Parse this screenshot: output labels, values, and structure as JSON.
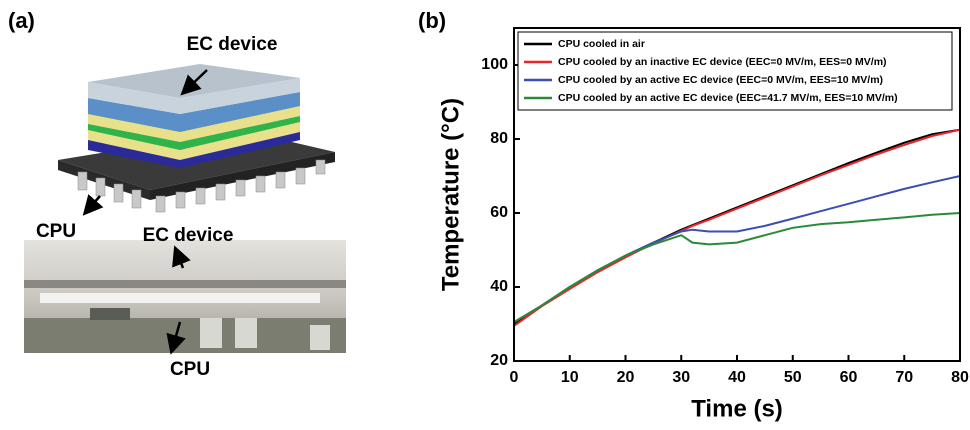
{
  "panel_a": {
    "label": "(a)",
    "top_callout": "EC device",
    "bottom_callout": "CPU",
    "photo_top_callout": "EC device",
    "photo_bottom_callout": "CPU"
  },
  "panel_b": {
    "label": "(b)"
  },
  "chart_data": {
    "type": "line",
    "x_label": "Time (s)",
    "y_label": "Temperature (°C)",
    "x": [
      0,
      5,
      10,
      15,
      20,
      25,
      30,
      32,
      35,
      40,
      45,
      50,
      55,
      60,
      65,
      70,
      75,
      80
    ],
    "series": [
      {
        "name": "CPU cooled in air",
        "color": "#000000",
        "values": [
          30,
          35,
          40,
          44.5,
          48.5,
          52,
          55.5,
          56.7,
          58.5,
          61.5,
          64.5,
          67.5,
          70.5,
          73.5,
          76.3,
          79,
          81.3,
          82.5
        ]
      },
      {
        "name": "CPU cooled by an inactive EC device (EEC=0 MV/m, EES=0 MV/m)",
        "color": "#e8262a",
        "values": [
          29.5,
          34.8,
          39.5,
          44,
          48,
          51.8,
          55.2,
          56.5,
          58.2,
          61.2,
          64.2,
          67.2,
          70.2,
          73,
          75.8,
          78.4,
          80.8,
          82.5
        ]
      },
      {
        "name": "CPU cooled by an active EC device (EEC=0 MV/m, EES=10 MV/m)",
        "color": "#3a4fb0",
        "values": [
          30.5,
          35,
          40,
          44.5,
          48.5,
          52,
          55,
          55.5,
          55,
          55,
          56.5,
          58.5,
          60.5,
          62.5,
          64.5,
          66.5,
          68.3,
          70
        ]
      },
      {
        "name": "CPU cooled by an active EC device (EEC=41.7 MV/m, EES=10 MV/m)",
        "color": "#2a8a3a",
        "values": [
          30.5,
          35,
          40,
          44.5,
          48.5,
          51.5,
          54,
          52,
          51.5,
          52,
          54,
          56,
          57,
          57.5,
          58.2,
          58.8,
          59.5,
          60
        ]
      }
    ],
    "xlim": [
      0,
      80
    ],
    "xticks": [
      0,
      10,
      20,
      30,
      40,
      50,
      60,
      70,
      80
    ],
    "ylim": [
      20,
      110
    ],
    "yticks": [
      20,
      40,
      60,
      80,
      100
    ],
    "grid": false,
    "legend": "top-left"
  }
}
